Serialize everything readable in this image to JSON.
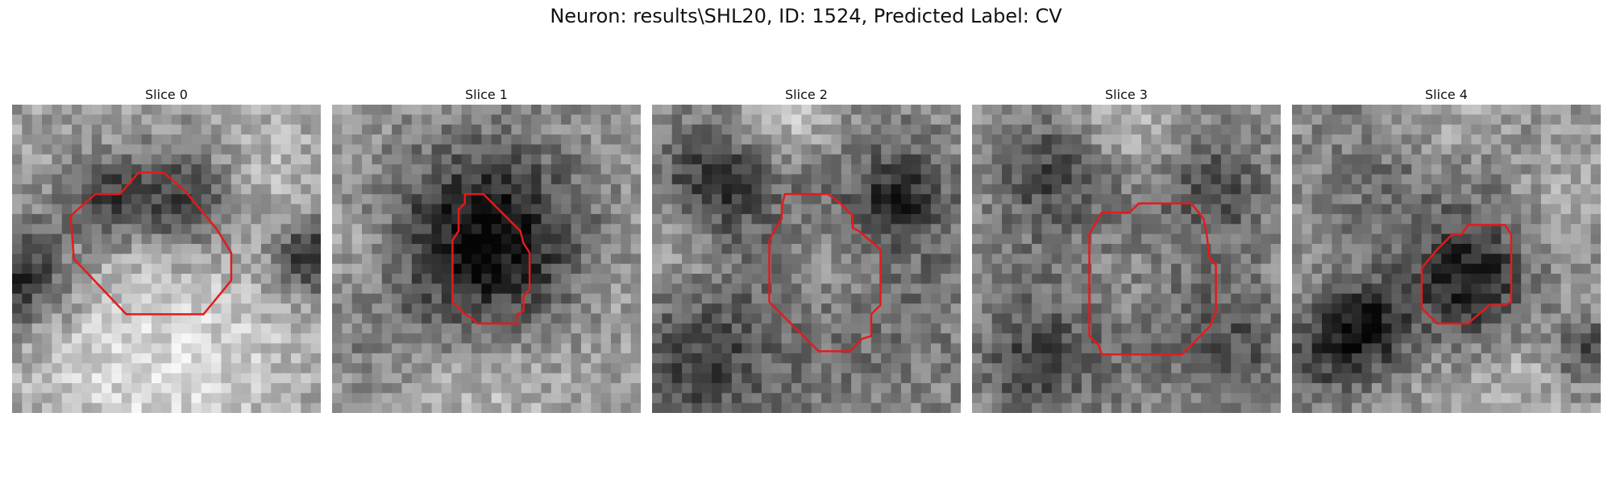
{
  "title": "Neuron: results\\SHL20, ID: 1524, Predicted Label: CV",
  "contour_color": "#e41a1c",
  "panels": [
    {
      "label": "Slice 0",
      "seed": 11,
      "blobs": [
        [
          0.02,
          0.55,
          0.12,
          -0.45
        ],
        [
          0.97,
          0.5,
          0.09,
          -0.45
        ],
        [
          0.5,
          0.58,
          0.25,
          0.08
        ],
        [
          0.55,
          0.3,
          0.12,
          -0.4
        ],
        [
          0.3,
          0.3,
          0.1,
          -0.35
        ],
        [
          0.82,
          0.18,
          0.12,
          0.1
        ],
        [
          0.5,
          0.92,
          0.25,
          0.2
        ],
        [
          0.18,
          0.85,
          0.15,
          0.05
        ],
        [
          0.85,
          0.75,
          0.14,
          0.05
        ]
      ],
      "base": 0.62,
      "contour": [
        [
          0.35,
          0.29
        ],
        [
          0.41,
          0.22
        ],
        [
          0.49,
          0.22
        ],
        [
          0.56,
          0.28
        ],
        [
          0.66,
          0.4
        ],
        [
          0.71,
          0.48
        ],
        [
          0.71,
          0.57
        ],
        [
          0.62,
          0.68
        ],
        [
          0.37,
          0.68
        ],
        [
          0.2,
          0.5
        ],
        [
          0.19,
          0.36
        ],
        [
          0.27,
          0.29
        ]
      ]
    },
    {
      "label": "Slice 1",
      "seed": 23,
      "blobs": [
        [
          0.5,
          0.45,
          0.22,
          -0.6
        ],
        [
          0.1,
          0.45,
          0.1,
          0.1
        ],
        [
          0.9,
          0.6,
          0.12,
          0.05
        ],
        [
          0.5,
          0.9,
          0.22,
          0.15
        ],
        [
          0.15,
          0.8,
          0.12,
          -0.1
        ]
      ],
      "base": 0.6,
      "contour": [
        [
          0.43,
          0.29
        ],
        [
          0.49,
          0.29
        ],
        [
          0.61,
          0.41
        ],
        [
          0.62,
          0.45
        ],
        [
          0.64,
          0.48
        ],
        [
          0.64,
          0.6
        ],
        [
          0.62,
          0.62
        ],
        [
          0.62,
          0.67
        ],
        [
          0.6,
          0.68
        ],
        [
          0.6,
          0.71
        ],
        [
          0.47,
          0.71
        ],
        [
          0.45,
          0.69
        ],
        [
          0.43,
          0.68
        ],
        [
          0.41,
          0.66
        ],
        [
          0.39,
          0.64
        ],
        [
          0.39,
          0.44
        ],
        [
          0.41,
          0.41
        ],
        [
          0.41,
          0.34
        ],
        [
          0.43,
          0.32
        ]
      ]
    },
    {
      "label": "Slice 2",
      "seed": 37,
      "blobs": [
        [
          0.58,
          0.52,
          0.15,
          0.15
        ],
        [
          0.58,
          0.52,
          0.27,
          -0.35
        ],
        [
          0.58,
          0.52,
          0.2,
          0.2
        ],
        [
          0.45,
          0.02,
          0.12,
          0.25
        ],
        [
          0.2,
          0.25,
          0.12,
          -0.3
        ],
        [
          0.8,
          0.3,
          0.1,
          -0.3
        ],
        [
          0.15,
          0.85,
          0.15,
          -0.25
        ],
        [
          0.1,
          0.45,
          0.1,
          0.15
        ]
      ],
      "base": 0.55,
      "contour": [
        [
          0.43,
          0.29
        ],
        [
          0.57,
          0.29
        ],
        [
          0.61,
          0.32
        ],
        [
          0.65,
          0.36
        ],
        [
          0.65,
          0.4
        ],
        [
          0.67,
          0.41
        ],
        [
          0.74,
          0.47
        ],
        [
          0.74,
          0.65
        ],
        [
          0.71,
          0.68
        ],
        [
          0.71,
          0.75
        ],
        [
          0.68,
          0.76
        ],
        [
          0.64,
          0.8
        ],
        [
          0.54,
          0.8
        ],
        [
          0.44,
          0.7
        ],
        [
          0.42,
          0.68
        ],
        [
          0.38,
          0.64
        ],
        [
          0.38,
          0.44
        ],
        [
          0.4,
          0.4
        ],
        [
          0.42,
          0.37
        ],
        [
          0.42,
          0.33
        ]
      ]
    },
    {
      "label": "Slice 3",
      "seed": 53,
      "blobs": [
        [
          0.5,
          0.55,
          0.15,
          0.12
        ],
        [
          0.5,
          0.55,
          0.26,
          -0.35
        ],
        [
          0.5,
          0.55,
          0.19,
          0.18
        ],
        [
          0.25,
          0.2,
          0.12,
          -0.25
        ],
        [
          0.8,
          0.25,
          0.12,
          -0.2
        ],
        [
          0.2,
          0.85,
          0.12,
          -0.25
        ],
        [
          0.85,
          0.8,
          0.12,
          -0.2
        ],
        [
          0.5,
          0.05,
          0.14,
          0.2
        ]
      ],
      "base": 0.58,
      "contour": [
        [
          0.42,
          0.35
        ],
        [
          0.51,
          0.35
        ],
        [
          0.54,
          0.32
        ],
        [
          0.71,
          0.32
        ],
        [
          0.75,
          0.37
        ],
        [
          0.76,
          0.42
        ],
        [
          0.77,
          0.5
        ],
        [
          0.79,
          0.52
        ],
        [
          0.79,
          0.67
        ],
        [
          0.77,
          0.72
        ],
        [
          0.68,
          0.81
        ],
        [
          0.42,
          0.81
        ],
        [
          0.41,
          0.78
        ],
        [
          0.38,
          0.75
        ],
        [
          0.38,
          0.42
        ]
      ]
    },
    {
      "label": "Slice 4",
      "seed": 71,
      "blobs": [
        [
          0.58,
          0.58,
          0.13,
          -0.45
        ],
        [
          0.4,
          0.22,
          0.25,
          -0.2
        ],
        [
          0.1,
          0.8,
          0.12,
          -0.3
        ],
        [
          0.25,
          0.72,
          0.1,
          -0.4
        ],
        [
          0.95,
          0.8,
          0.08,
          -0.3
        ],
        [
          0.88,
          0.25,
          0.1,
          0.1
        ],
        [
          0.5,
          0.05,
          0.14,
          0.2
        ],
        [
          0.75,
          0.88,
          0.12,
          0.1
        ]
      ],
      "base": 0.6,
      "contour": [
        [
          0.52,
          0.42
        ],
        [
          0.55,
          0.42
        ],
        [
          0.57,
          0.39
        ],
        [
          0.69,
          0.39
        ],
        [
          0.71,
          0.42
        ],
        [
          0.71,
          0.64
        ],
        [
          0.69,
          0.65
        ],
        [
          0.64,
          0.65
        ],
        [
          0.57,
          0.71
        ],
        [
          0.47,
          0.71
        ],
        [
          0.42,
          0.66
        ],
        [
          0.42,
          0.53
        ],
        [
          0.47,
          0.47
        ]
      ]
    }
  ]
}
